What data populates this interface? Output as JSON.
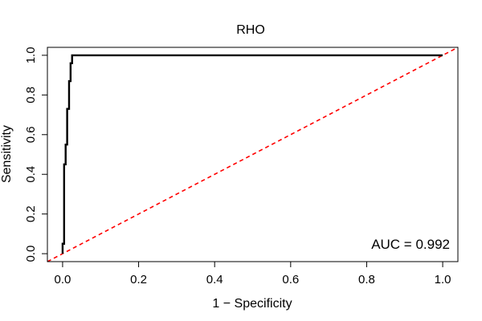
{
  "chart_data": {
    "type": "line",
    "title": "RHO",
    "xlabel": "1 − Specificity",
    "ylabel": "Sensitivity",
    "xlim": [
      -0.04,
      1.04
    ],
    "ylim": [
      -0.04,
      1.04
    ],
    "x_ticks": [
      0.0,
      0.2,
      0.4,
      0.6,
      0.8,
      1.0
    ],
    "x_tick_labels": [
      "0.0",
      "0.2",
      "0.4",
      "0.6",
      "0.8",
      "1.0"
    ],
    "y_ticks": [
      0.0,
      0.2,
      0.4,
      0.6,
      0.8,
      1.0
    ],
    "y_tick_labels": [
      "0.0",
      "0.2",
      "0.4",
      "0.6",
      "0.8",
      "1.0"
    ],
    "grid": false,
    "legend": "none",
    "annotation": "AUC = 0.992",
    "series": [
      {
        "color": "#000000",
        "style": "solid",
        "x": [
          0.0,
          0.0,
          0.004,
          0.004,
          0.008,
          0.008,
          0.012,
          0.012,
          0.017,
          0.017,
          0.021,
          0.021,
          0.025,
          0.025,
          0.03,
          1.0
        ],
        "y": [
          0.0,
          0.05,
          0.05,
          0.45,
          0.45,
          0.55,
          0.55,
          0.73,
          0.73,
          0.87,
          0.87,
          0.96,
          0.96,
          1.0,
          1.0,
          1.0
        ]
      },
      {
        "color": "#ff0000",
        "style": "dashed",
        "x": [
          -0.04,
          1.04
        ],
        "y": [
          -0.04,
          1.04
        ]
      }
    ]
  }
}
